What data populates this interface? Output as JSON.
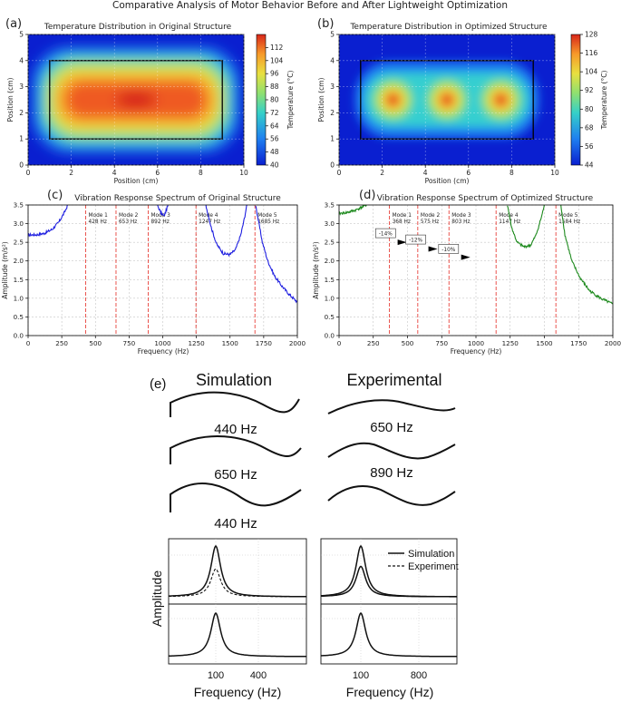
{
  "page_title": "Comparative Analysis of Motor Behavior Before and After Lightweight Optimization",
  "colors": {
    "mode_line": "#e8423c",
    "orig_curve": "#1f1fe0",
    "opt_curve": "#1e8a1e",
    "box": "#000000"
  },
  "chart_data": [
    {
      "id": "a",
      "type": "heatmap",
      "panel_label": "(a)",
      "title": "Temperature Distribution in Original Structure",
      "xlabel": "Position (cm)",
      "ylabel": "Position (cm)",
      "xlim": [
        0,
        10
      ],
      "ylim": [
        0,
        5
      ],
      "xticks": [
        "0",
        "2",
        "4",
        "6",
        "8",
        "10"
      ],
      "yticks": [
        "0",
        "1",
        "2",
        "3",
        "4",
        "5"
      ],
      "colorbar": {
        "label": "Temperature (°C)",
        "range": [
          40,
          120
        ],
        "ticks": [
          "40",
          "48",
          "56",
          "64",
          "72",
          "80",
          "88",
          "96",
          "104",
          "112"
        ]
      },
      "structure_box": {
        "x": [
          1,
          9
        ],
        "y": [
          1,
          4
        ]
      },
      "hotspots": [
        {
          "x": 5,
          "y": 2.5,
          "peak_C": 120
        }
      ],
      "hot_region_x": [
        2.5,
        7.5
      ]
    },
    {
      "id": "b",
      "type": "heatmap",
      "panel_label": "(b)",
      "title": "Temperature Distribution in Optimized Structure",
      "xlabel": "Position (cm)",
      "ylabel": "Position (cm)",
      "xlim": [
        0,
        10
      ],
      "ylim": [
        0,
        5
      ],
      "xticks": [
        "0",
        "2",
        "4",
        "6",
        "8",
        "10"
      ],
      "yticks": [
        "0",
        "1",
        "2",
        "3",
        "4",
        "5"
      ],
      "colorbar": {
        "label": "Temperature (°C)",
        "range": [
          44,
          128
        ],
        "ticks": [
          "44",
          "56",
          "68",
          "80",
          "92",
          "104",
          "116",
          "128"
        ]
      },
      "structure_box": {
        "x": [
          1,
          9
        ],
        "y": [
          1,
          4
        ]
      },
      "hotspots": [
        {
          "x": 2.5,
          "y": 2.5,
          "peak_C": 128
        },
        {
          "x": 5,
          "y": 2.5,
          "peak_C": 128
        },
        {
          "x": 7.5,
          "y": 2.5,
          "peak_C": 128
        }
      ]
    },
    {
      "id": "c",
      "type": "line",
      "panel_label": "(c)",
      "title": "Vibration Response Spectrum of Original Structure",
      "xlabel": "Frequency (Hz)",
      "ylabel": "Amplitude (m/s²)",
      "xlim": [
        0,
        2000
      ],
      "ylim": [
        0,
        3.5
      ],
      "xticks": [
        "0",
        "250",
        "500",
        "750",
        "1000",
        "1250",
        "1500",
        "1750",
        "2000"
      ],
      "yticks": [
        "0.0",
        "0.5",
        "1.0",
        "1.5",
        "2.0",
        "2.5",
        "3.0",
        "3.5"
      ],
      "modes": [
        {
          "name": "Mode 1",
          "freq": 428,
          "label": "428 Hz"
        },
        {
          "name": "Mode 2",
          "freq": 653,
          "label": "653 Hz"
        },
        {
          "name": "Mode 3",
          "freq": 892,
          "label": "892 Hz"
        },
        {
          "name": "Mode 4",
          "freq": 1247,
          "label": "1247 Hz"
        },
        {
          "name": "Mode 5",
          "freq": 1685,
          "label": "1685 Hz"
        }
      ],
      "series": [
        {
          "name": "Original",
          "points": [
            [
              0,
              2.7
            ],
            [
              60,
              2.7
            ],
            [
              120,
              2.74
            ],
            [
              180,
              2.85
            ],
            [
              230,
              3.05
            ],
            [
              270,
              3.3
            ],
            [
              295,
              3.5
            ]
          ]
        },
        {
          "name": "Original",
          "points": [
            [
              960,
              3.5
            ],
            [
              985,
              3.3
            ],
            [
              1010,
              3.2
            ],
            [
              1040,
              3.5
            ]
          ]
        },
        {
          "name": "Original",
          "points": [
            [
              1320,
              3.5
            ],
            [
              1360,
              2.9
            ],
            [
              1400,
              2.45
            ],
            [
              1450,
              2.2
            ],
            [
              1500,
              2.17
            ],
            [
              1540,
              2.3
            ],
            [
              1580,
              2.7
            ],
            [
              1610,
              3.2
            ],
            [
              1625,
              3.5
            ]
          ]
        },
        {
          "name": "Original",
          "points": [
            [
              1690,
              3.5
            ],
            [
              1710,
              3.1
            ],
            [
              1740,
              2.5
            ],
            [
              1780,
              2.0
            ],
            [
              1830,
              1.6
            ],
            [
              1880,
              1.35
            ],
            [
              1940,
              1.1
            ],
            [
              2000,
              0.9
            ]
          ]
        }
      ]
    },
    {
      "id": "d",
      "type": "line",
      "panel_label": "(d)",
      "title": "Vibration Response Spectrum of Optimized Structure",
      "xlabel": "Frequency (Hz)",
      "ylabel": "Amplitude (m/s²)",
      "xlim": [
        0,
        2000
      ],
      "ylim": [
        0,
        3.5
      ],
      "xticks": [
        "0",
        "250",
        "500",
        "750",
        "1000",
        "1250",
        "1500",
        "1750",
        "2000"
      ],
      "yticks": [
        "0.0",
        "0.5",
        "1.0",
        "1.5",
        "2.0",
        "2.5",
        "3.0",
        "3.5"
      ],
      "modes": [
        {
          "name": "Mode 1",
          "freq": 368,
          "label": "368 Hz"
        },
        {
          "name": "Mode 2",
          "freq": 575,
          "label": "575 Hz"
        },
        {
          "name": "Mode 3",
          "freq": 803,
          "label": "803 Hz"
        },
        {
          "name": "Mode 4",
          "freq": 1147,
          "label": "1147 Hz"
        },
        {
          "name": "Mode 5",
          "freq": 1584,
          "label": "1584 Hz"
        }
      ],
      "annotations": [
        {
          "text": "-14%",
          "x": 340,
          "y": 2.72,
          "arrow_to": [
            428,
            2.5
          ]
        },
        {
          "text": "-12%",
          "x": 560,
          "y": 2.55,
          "arrow_to": [
            653,
            2.32
          ]
        },
        {
          "text": "-10%",
          "x": 800,
          "y": 2.3,
          "arrow_to": [
            892,
            2.1
          ]
        }
      ],
      "series": [
        {
          "name": "Optimized",
          "points": [
            [
              0,
              3.27
            ],
            [
              60,
              3.3
            ],
            [
              120,
              3.36
            ],
            [
              170,
              3.45
            ],
            [
              200,
              3.5
            ]
          ]
        },
        {
          "name": "Optimized",
          "points": [
            [
              1230,
              3.5
            ],
            [
              1260,
              2.9
            ],
            [
              1300,
              2.5
            ],
            [
              1350,
              2.38
            ],
            [
              1400,
              2.42
            ],
            [
              1440,
              2.7
            ],
            [
              1480,
              3.2
            ],
            [
              1500,
              3.5
            ]
          ]
        },
        {
          "name": "Optimized",
          "points": [
            [
              1620,
              3.5
            ],
            [
              1650,
              2.7
            ],
            [
              1700,
              2.0
            ],
            [
              1760,
              1.55
            ],
            [
              1830,
              1.2
            ],
            [
              1910,
              1.0
            ],
            [
              2000,
              0.84
            ]
          ]
        }
      ]
    },
    {
      "id": "e",
      "type": "line",
      "panel_label": "(e)",
      "columns": [
        {
          "title": "Simulation",
          "mode_labels": [
            "440 Hz",
            "650 Hz",
            "440 Hz"
          ]
        },
        {
          "title": "Experimental",
          "mode_labels": [
            "650 Hz",
            "890 Hz"
          ]
        }
      ],
      "fr_plots": {
        "ylabel": "Amplitude",
        "xlabel": "Frequency (Hz)",
        "left_xticks": [
          "100",
          "400"
        ],
        "right_xticks": [
          "100",
          "800"
        ],
        "legend": [
          "Simulation",
          "Experiment"
        ],
        "left_top": [
          {
            "name": "Simulation",
            "peak_freq": 100,
            "peak": 1.0
          },
          {
            "name": "Experiment",
            "peak_freq": 100,
            "peak": 0.55
          }
        ],
        "right_top": [
          {
            "name": "Simulation",
            "peak_freq": 100,
            "peak": 1.0
          },
          {
            "name": "Experiment",
            "peak_freq": 100,
            "peak": 0.6
          }
        ],
        "left_bottom": [
          {
            "name": "Simulation",
            "peak_freq": 100,
            "peak": 1.0
          }
        ],
        "right_bottom": [
          {
            "name": "Simulation",
            "peak_freq": 100,
            "peak": 1.0
          }
        ]
      }
    }
  ]
}
